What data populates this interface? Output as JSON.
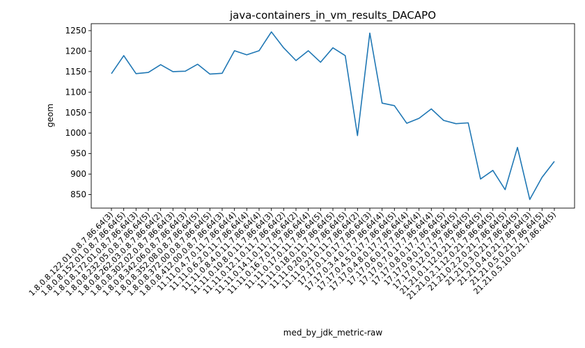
{
  "chart_data": {
    "type": "line",
    "title": "java-containers_in_vm_results_DACAPO",
    "xlabel": "med_by_jdk_metric-raw",
    "ylabel": "geom",
    "ylim": [
      817,
      1267
    ],
    "yticks": [
      850,
      900,
      950,
      1000,
      1050,
      1100,
      1150,
      1200,
      1250
    ],
    "grid": false,
    "color": "#1f77b4",
    "categories": [
      "1.8.0.8.122.01.0.8.7.86.64(3)",
      "1.8.0.8.152.01.0.8.7.86.64(5)",
      "1.8.0.8.172.01.0.8.7.86.64(3)",
      "1.8.0.8.232.05.0.8.7.86.64(5)",
      "1.8.0.8.262.03.0.8.7.86.64(2)",
      "1.8.0.8.302.02.0.8.7.86.64(3)",
      "1.8.0.8.342.06.0.8.7.86.64(3)",
      "1.8.0.8.352.08.0.8.7.86.64(5)",
      "1.8.0.8.372.00.0.8.7.86.64(5)",
      "1.8.0.8.412.00.0.8.7.86.64(3)",
      "11.11.0.4.7.0.11.7.86.64(4)",
      "11.11.0.6.2.0.11.7.86.64(4)",
      "11.11.0.8.4.0.11.7.86.64(4)",
      "11.11.0.10.8.0.11.7.86.64(3)",
      "11.11.0.12.1.0.11.7.86.64(2)",
      "11.11.0.14.1.0.11.7.86.64(2)",
      "11.11.0.16.7.0.11.7.86.64(4)",
      "11.11.0.17.0.11.7.86.64(5)",
      "11.11.0.18.0.11.7.86.64(5)",
      "11.11.0.20.0.11.7.86.64(5)",
      "11.11.0.21.0.11.7.86.64(2)",
      "17.17.0.1.0.17.7.86.64(3)",
      "17.17.0.3.4.0.17.7.86.64(4)",
      "17.17.0.4.5.0.17.7.86.64(5)",
      "17.17.0.4.8.0.17.7.86.64(4)",
      "17.17.0.6.0.17.7.86.64(4)",
      "17.17.0.7.0.17.7.86.64(4)",
      "17.17.0.8.0.17.7.86.64(5)",
      "17.17.0.9.0.17.7.86.64(5)",
      "17.17.0.12.0.17.7.86.64(5)",
      "21.21.0.1.12.0.21.7.86.64(5)",
      "21.21.0.2.1.12.0.21.7.86.64(5)",
      "21.21.0.2.2.0.21.7.86.64(5)",
      "21.21.0.3.0.21.7.86.64(5)",
      "21.21.0.4.0.21.7.86.64(3)",
      "21.21.0.5.0.21.7.86.64(5)",
      "21.21.0.5.10.0.21.7.86.64(5)"
    ],
    "values": [
      1145,
      1189,
      1145,
      1148,
      1167,
      1150,
      1151,
      1168,
      1144,
      1146,
      1201,
      1191,
      1201,
      1247,
      1208,
      1177,
      1201,
      1173,
      1208,
      1189,
      994,
      1244,
      1073,
      1067,
      1024,
      1036,
      1059,
      1031,
      1023,
      1025,
      888,
      909,
      862,
      965,
      838,
      892,
      931
    ]
  }
}
